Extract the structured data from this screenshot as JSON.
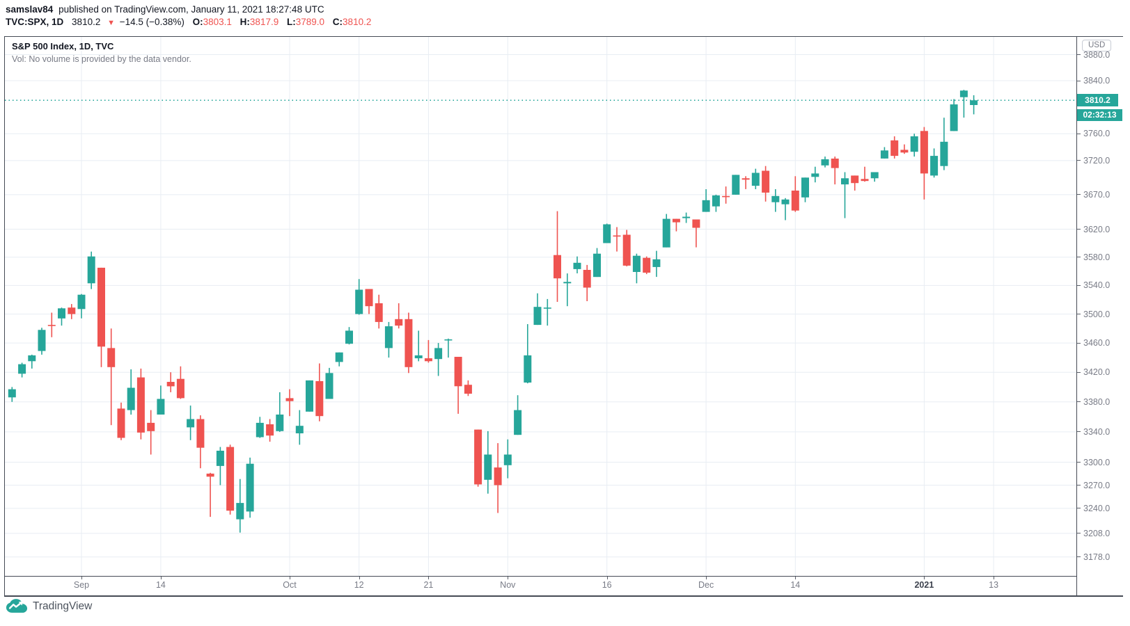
{
  "header": {
    "author": "samslav84",
    "published_text": "published on TradingView.com, January 11, 2021 18:27:48 UTC",
    "symbol": "TVC:SPX, 1D",
    "last_price": "3810.2",
    "direction_icon": "▼",
    "change": "−14.5 (−0.38%)",
    "o_label": "O:",
    "o": "3803.1",
    "h_label": "H:",
    "h": "3817.9",
    "l_label": "L:",
    "l": "3789.0",
    "c_label": "C:",
    "c": "3810.2"
  },
  "legend": {
    "title": "S&P 500 Index, 1D, TVC",
    "volume_note": "Vol: No volume is provided by the data vendor."
  },
  "price_axis": {
    "currency": "USD",
    "last_price_label": "3810.2",
    "countdown": "02:32:13"
  },
  "footer": {
    "logo_text": "TradingView"
  },
  "colors": {
    "up": "#26a69a",
    "down": "#ef5350",
    "grid": "#e8edf3",
    "label_bg": "#26a69a",
    "text_dark": "#131722",
    "text_gray": "#787b86",
    "red_text": "#ef5350",
    "frame_border": "#454a54"
  },
  "chart_data": {
    "type": "candlestick",
    "title": "S&P 500 Index, 1D, TVC",
    "symbol": "TVC:SPX",
    "interval": "1D",
    "scale": "log",
    "grid": true,
    "y_axis_side": "right",
    "y_range_approx": [
      3128,
      3910
    ],
    "last_price": 3810.2,
    "y_ticks": [
      "3880.0",
      "3840.0",
      "3760.0",
      "3720.0",
      "3670.0",
      "3620.0",
      "3580.0",
      "3540.0",
      "3500.0",
      "3460.0",
      "3420.0",
      "3380.0",
      "3340.0",
      "3300.0",
      "3270.0",
      "3240.0",
      "3208.0",
      "3178.0"
    ],
    "x_ticks": [
      {
        "label": "Sep",
        "d": 0,
        "bold": false
      },
      {
        "label": "14",
        "d": 8,
        "bold": false
      },
      {
        "label": "Oct",
        "d": 21,
        "bold": false
      },
      {
        "label": "12",
        "d": 28,
        "bold": false
      },
      {
        "label": "21",
        "d": 35,
        "bold": false
      },
      {
        "label": "Nov",
        "d": 43,
        "bold": false
      },
      {
        "label": "16",
        "d": 53,
        "bold": false
      },
      {
        "label": "Dec",
        "d": 63,
        "bold": false
      },
      {
        "label": "14",
        "d": 72,
        "bold": false
      },
      {
        "label": "2021",
        "d": 85,
        "bold": true
      },
      {
        "label": "13",
        "d": 92,
        "bold": false
      }
    ],
    "x_anchor_index": 7,
    "candles": [
      [
        "2020-08-21",
        3386,
        3400,
        3380,
        3397
      ],
      [
        "2020-08-24",
        3418,
        3433,
        3413,
        3431
      ],
      [
        "2020-08-25",
        3435,
        3444,
        3425,
        3443
      ],
      [
        "2020-08-26",
        3449,
        3481,
        3444,
        3478
      ],
      [
        "2020-08-27",
        3485,
        3502,
        3468,
        3484
      ],
      [
        "2020-08-28",
        3494,
        3509,
        3484,
        3508
      ],
      [
        "2020-08-31",
        3509,
        3514,
        3493,
        3500
      ],
      [
        "2020-09-01",
        3507,
        3528,
        3494,
        3527
      ],
      [
        "2020-09-02",
        3543,
        3588,
        3535,
        3581
      ],
      [
        "2020-09-03",
        3565,
        3565,
        3427,
        3455
      ],
      [
        "2020-09-04",
        3453,
        3480,
        3349,
        3427
      ],
      [
        "2020-09-08",
        3371,
        3379,
        3329,
        3332
      ],
      [
        "2020-09-09",
        3369,
        3424,
        3363,
        3399
      ],
      [
        "2020-09-10",
        3413,
        3425,
        3330,
        3339
      ],
      [
        "2020-09-11",
        3352,
        3369,
        3310,
        3341
      ],
      [
        "2020-09-14",
        3363,
        3402,
        3363,
        3384
      ],
      [
        "2020-09-15",
        3407,
        3420,
        3393,
        3401
      ],
      [
        "2020-09-16",
        3411,
        3428,
        3384,
        3385
      ],
      [
        "2020-09-17",
        3346,
        3375,
        3329,
        3357
      ],
      [
        "2020-09-18",
        3357,
        3362,
        3292,
        3319
      ],
      [
        "2020-09-21",
        3285,
        3286,
        3229,
        3281
      ],
      [
        "2020-09-22",
        3295,
        3320,
        3270,
        3315
      ],
      [
        "2020-09-23",
        3320,
        3323,
        3232,
        3237
      ],
      [
        "2020-09-24",
        3226,
        3278,
        3209,
        3247
      ],
      [
        "2020-09-25",
        3236,
        3306,
        3228,
        3298
      ],
      [
        "2020-09-28",
        3333,
        3360,
        3332,
        3352
      ],
      [
        "2020-09-29",
        3350,
        3357,
        3327,
        3335
      ],
      [
        "2020-09-30",
        3341,
        3393,
        3340,
        3363
      ],
      [
        "2020-10-01",
        3385,
        3397,
        3361,
        3381
      ],
      [
        "2020-10-02",
        3338,
        3369,
        3323,
        3348
      ],
      [
        "2020-10-05",
        3367,
        3409,
        3367,
        3409
      ],
      [
        "2020-10-06",
        3408,
        3432,
        3354,
        3361
      ],
      [
        "2020-10-07",
        3384,
        3426,
        3384,
        3419
      ],
      [
        "2020-10-08",
        3434,
        3447,
        3428,
        3447
      ],
      [
        "2020-10-09",
        3459,
        3482,
        3458,
        3477
      ],
      [
        "2020-10-12",
        3500,
        3549,
        3499,
        3534
      ],
      [
        "2020-10-13",
        3535,
        3535,
        3500,
        3511
      ],
      [
        "2020-10-14",
        3515,
        3527,
        3480,
        3489
      ],
      [
        "2020-10-15",
        3453,
        3489,
        3440,
        3483
      ],
      [
        "2020-10-16",
        3493,
        3515,
        3480,
        3484
      ],
      [
        "2020-10-19",
        3493,
        3502,
        3419,
        3427
      ],
      [
        "2020-10-20",
        3439,
        3477,
        3435,
        3443
      ],
      [
        "2020-10-21",
        3439,
        3464,
        3433,
        3435
      ],
      [
        "2020-10-22",
        3438,
        3460,
        3415,
        3453
      ],
      [
        "2020-10-23",
        3464,
        3466,
        3440,
        3465
      ],
      [
        "2020-10-26",
        3441,
        3441,
        3364,
        3401
      ],
      [
        "2020-10-27",
        3403,
        3409,
        3388,
        3391
      ],
      [
        "2020-10-28",
        3343,
        3343,
        3268,
        3271
      ],
      [
        "2020-10-29",
        3277,
        3341,
        3259,
        3310
      ],
      [
        "2020-10-30",
        3293,
        3325,
        3234,
        3270
      ],
      [
        "2020-11-02",
        3296,
        3330,
        3279,
        3310
      ],
      [
        "2020-11-03",
        3336,
        3389,
        3336,
        3369
      ],
      [
        "2020-11-04",
        3406,
        3486,
        3405,
        3443
      ],
      [
        "2020-11-05",
        3485,
        3529,
        3485,
        3510
      ],
      [
        "2020-11-06",
        3508,
        3521,
        3484,
        3509
      ],
      [
        "2020-11-09",
        3583,
        3646,
        3517,
        3550
      ],
      [
        "2020-11-10",
        3543,
        3557,
        3511,
        3545
      ],
      [
        "2020-11-11",
        3563,
        3581,
        3557,
        3572
      ],
      [
        "2020-11-12",
        3562,
        3569,
        3518,
        3537
      ],
      [
        "2020-11-13",
        3552,
        3593,
        3552,
        3585
      ],
      [
        "2020-11-16",
        3600,
        3628,
        3600,
        3627
      ],
      [
        "2020-11-17",
        3611,
        3623,
        3588,
        3610
      ],
      [
        "2020-11-18",
        3612,
        3619,
        3567,
        3568
      ],
      [
        "2020-11-19",
        3559,
        3585,
        3543,
        3582
      ],
      [
        "2020-11-20",
        3579,
        3581,
        3556,
        3558
      ],
      [
        "2020-11-23",
        3566,
        3589,
        3552,
        3577
      ],
      [
        "2020-11-24",
        3594,
        3642,
        3594,
        3635
      ],
      [
        "2020-11-25",
        3635,
        3635,
        3617,
        3630
      ],
      [
        "2020-11-27",
        3636,
        3644,
        3629,
        3638
      ],
      [
        "2020-11-30",
        3634,
        3634,
        3594,
        3622
      ],
      [
        "2020-12-01",
        3645,
        3678,
        3645,
        3662
      ],
      [
        "2020-12-02",
        3653,
        3670,
        3645,
        3669
      ],
      [
        "2020-12-03",
        3668,
        3682,
        3657,
        3667
      ],
      [
        "2020-12-04",
        3670,
        3699,
        3670,
        3699
      ],
      [
        "2020-12-07",
        3694,
        3697,
        3678,
        3692
      ],
      [
        "2020-12-08",
        3683,
        3708,
        3678,
        3702
      ],
      [
        "2020-12-09",
        3705,
        3712,
        3660,
        3673
      ],
      [
        "2020-12-10",
        3659,
        3678,
        3645,
        3668
      ],
      [
        "2020-12-11",
        3656,
        3665,
        3633,
        3663
      ],
      [
        "2020-12-14",
        3676,
        3697,
        3645,
        3647
      ],
      [
        "2020-12-15",
        3666,
        3695,
        3659,
        3695
      ],
      [
        "2020-12-16",
        3696,
        3711,
        3688,
        3701
      ],
      [
        "2020-12-17",
        3713,
        3726,
        3710,
        3722
      ],
      [
        "2020-12-18",
        3723,
        3726,
        3685,
        3709
      ],
      [
        "2020-12-21",
        3685,
        3703,
        3636,
        3694
      ],
      [
        "2020-12-22",
        3698,
        3698,
        3676,
        3687
      ],
      [
        "2020-12-23",
        3693,
        3711,
        3689,
        3690
      ],
      [
        "2020-12-24",
        3694,
        3703,
        3689,
        3703
      ],
      [
        "2020-12-28",
        3723,
        3740,
        3723,
        3735
      ],
      [
        "2020-12-29",
        3750,
        3756,
        3723,
        3727
      ],
      [
        "2020-12-30",
        3736,
        3744,
        3730,
        3732
      ],
      [
        "2020-12-31",
        3733,
        3760,
        3726,
        3756
      ],
      [
        "2021-01-04",
        3764,
        3770,
        3663,
        3701
      ],
      [
        "2021-01-05",
        3698,
        3738,
        3695,
        3727
      ],
      [
        "2021-01-06",
        3712,
        3784,
        3706,
        3748
      ],
      [
        "2021-01-07",
        3764,
        3812,
        3764,
        3804
      ],
      [
        "2021-01-08",
        3815,
        3826,
        3784,
        3825
      ],
      [
        "2021-01-11",
        3803.1,
        3817.9,
        3789.0,
        3810.2
      ]
    ]
  }
}
